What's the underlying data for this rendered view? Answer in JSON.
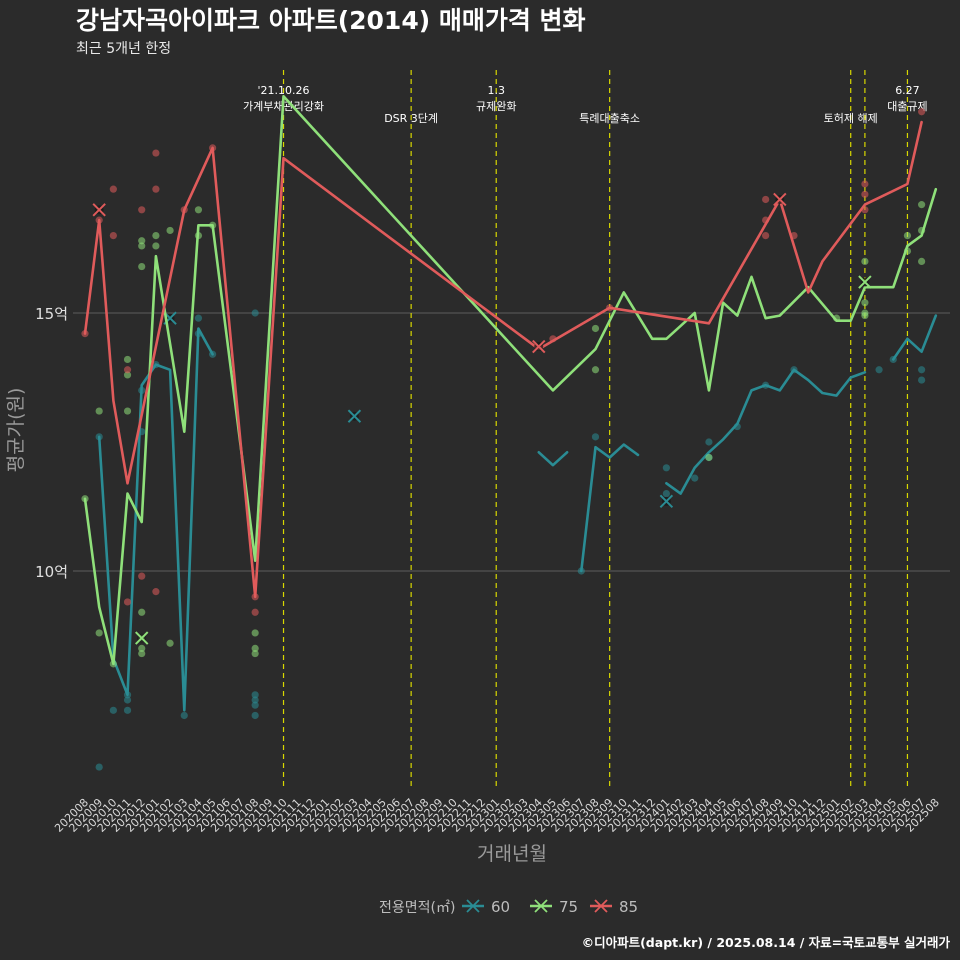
{
  "header": {
    "title": "강남자곡아이파크 아파트(2014) 매매가격 변화",
    "subtitle": "최근 5개년 한정"
  },
  "caption": "©디아파트(dapt.kr) / 2025.08.14 / 자료=국토교통부 실거래가",
  "legend": {
    "title": "전용면적(㎡)"
  },
  "chart_data": {
    "type": "line",
    "title": "강남자곡아이파크 아파트(2014) 매매가격 변화",
    "subtitle": "최근 5개년 한정",
    "xlabel": "거래년월",
    "ylabel": "평균가(원)",
    "ylim": [
      5.8,
      20.8
    ],
    "grid": "horizontal-major",
    "legend_position": "bottom",
    "y_ticks": [
      {
        "value": 10,
        "label": "10억"
      },
      {
        "value": 15,
        "label": "15억"
      }
    ],
    "x": [
      "202008",
      "202009",
      "202010",
      "202011",
      "202012",
      "202101",
      "202102",
      "202103",
      "202104",
      "202105",
      "202106",
      "202107",
      "202108",
      "202109",
      "202110",
      "202111",
      "202112",
      "202201",
      "202202",
      "202203",
      "202204",
      "202205",
      "202206",
      "202207",
      "202208",
      "202209",
      "202210",
      "202211",
      "202212",
      "202301",
      "202302",
      "202303",
      "202304",
      "202305",
      "202306",
      "202307",
      "202308",
      "202309",
      "202310",
      "202311",
      "202312",
      "202401",
      "202402",
      "202403",
      "202404",
      "202405",
      "202406",
      "202407",
      "202408",
      "202409",
      "202410",
      "202411",
      "202412",
      "202501",
      "202502",
      "202503",
      "202504",
      "202505",
      "202506",
      "202507",
      "202508"
    ],
    "series": [
      {
        "name": "60",
        "color": "#2a8c94",
        "lines": [
          [
            [
              "202009",
              12.6
            ],
            [
              "202010",
              8.3
            ],
            [
              "202011",
              7.6
            ],
            [
              "202012",
              13.6
            ],
            [
              "202101",
              14.0
            ],
            [
              "202102",
              13.9
            ],
            [
              "202103",
              7.3
            ],
            [
              "202104",
              14.7
            ],
            [
              "202105",
              14.2
            ]
          ],
          [
            [
              "202304",
              12.3
            ],
            [
              "202305",
              12.05
            ],
            [
              "202306",
              12.3
            ]
          ],
          [
            [
              "202307",
              10.0
            ],
            [
              "202308",
              12.4
            ],
            [
              "202309",
              12.2
            ],
            [
              "202310",
              12.45
            ],
            [
              "202311",
              12.25
            ]
          ],
          [
            [
              "202401",
              11.7
            ],
            [
              "202402",
              11.5
            ],
            [
              "202403",
              12.0
            ],
            [
              "202404",
              12.3
            ],
            [
              "202405",
              12.55
            ],
            [
              "202406",
              12.85
            ],
            [
              "202407",
              13.5
            ],
            [
              "202408",
              13.6
            ],
            [
              "202409",
              13.5
            ],
            [
              "202410",
              13.9
            ],
            [
              "202411",
              13.7
            ],
            [
              "202412",
              13.45
            ],
            [
              "202501",
              13.4
            ],
            [
              "202502",
              13.75
            ],
            [
              "202503",
              13.85
            ]
          ],
          [
            [
              "202505",
              14.1
            ],
            [
              "202506",
              14.5
            ],
            [
              "202507",
              14.25
            ],
            [
              "202508",
              14.95
            ]
          ]
        ],
        "points": [
          [
            "202009",
            12.6
          ],
          [
            "202009",
            6.2
          ],
          [
            "202010",
            7.3
          ],
          [
            "202011",
            7.5
          ],
          [
            "202011",
            7.3
          ],
          [
            "202011",
            7.6
          ],
          [
            "202012",
            12.7
          ],
          [
            "202012",
            13.5
          ],
          [
            "202101",
            14.0
          ],
          [
            "202103",
            7.2
          ],
          [
            "202104",
            14.6
          ],
          [
            "202104",
            14.9
          ],
          [
            "202105",
            14.2
          ],
          [
            "202108",
            15.0
          ],
          [
            "202108",
            7.6
          ],
          [
            "202108",
            7.5
          ],
          [
            "202108",
            7.4
          ],
          [
            "202108",
            7.2
          ],
          [
            "202307",
            10.0
          ],
          [
            "202308",
            12.6
          ],
          [
            "202401",
            11.5
          ],
          [
            "202401",
            12.0
          ],
          [
            "202403",
            11.8
          ],
          [
            "202404",
            12.5
          ],
          [
            "202404",
            12.2
          ],
          [
            "202406",
            12.8
          ],
          [
            "202408",
            13.6
          ],
          [
            "202410",
            13.9
          ],
          [
            "202504",
            13.9
          ],
          [
            "202505",
            14.1
          ],
          [
            "202507",
            13.9
          ],
          [
            "202507",
            13.7
          ]
        ],
        "max_markers": [
          [
            "202102",
            14.9
          ],
          [
            "202203",
            13.0
          ],
          [
            "202401",
            11.35
          ]
        ]
      },
      {
        "name": "75",
        "color": "#8fe07a",
        "lines": [
          [
            [
              "202008",
              11.4
            ],
            [
              "202009",
              9.3
            ],
            [
              "202010",
              8.2
            ],
            [
              "202011",
              11.5
            ],
            [
              "202012",
              10.95
            ],
            [
              "202101",
              16.1
            ],
            [
              "202103",
              12.7
            ],
            [
              "202104",
              16.7
            ],
            [
              "202105",
              16.7
            ],
            [
              "202108",
              10.2
            ],
            [
              "202110",
              19.2
            ],
            [
              "202305",
              13.5
            ],
            [
              "202308",
              14.3
            ],
            [
              "202310",
              15.4
            ],
            [
              "202312",
              14.5
            ],
            [
              "202401",
              14.5
            ],
            [
              "202402",
              14.75
            ],
            [
              "202403",
              15.0
            ],
            [
              "202404",
              13.5
            ],
            [
              "202405",
              15.2
            ],
            [
              "202406",
              14.95
            ],
            [
              "202407",
              15.7
            ],
            [
              "202408",
              14.9
            ],
            [
              "202409",
              14.95
            ],
            [
              "202411",
              15.5
            ],
            [
              "202501",
              14.85
            ],
            [
              "202502",
              14.85
            ],
            [
              "202503",
              15.5
            ],
            [
              "202505",
              15.5
            ],
            [
              "202506",
              16.3
            ],
            [
              "202507",
              16.5
            ],
            [
              "202508",
              17.4
            ]
          ]
        ],
        "points": [
          [
            "202008",
            11.4
          ],
          [
            "202009",
            13.1
          ],
          [
            "202009",
            8.8
          ],
          [
            "202010",
            8.2
          ],
          [
            "202011",
            14.1
          ],
          [
            "202011",
            13.8
          ],
          [
            "202011",
            13.1
          ],
          [
            "202012",
            16.4
          ],
          [
            "202012",
            16.3
          ],
          [
            "202012",
            15.9
          ],
          [
            "202012",
            9.2
          ],
          [
            "202012",
            8.7
          ],
          [
            "202012",
            8.5
          ],
          [
            "202012",
            8.4
          ],
          [
            "202101",
            16.5
          ],
          [
            "202101",
            16.3
          ],
          [
            "202102",
            16.6
          ],
          [
            "202102",
            8.6
          ],
          [
            "202104",
            17.0
          ],
          [
            "202104",
            16.5
          ],
          [
            "202105",
            16.7
          ],
          [
            "202108",
            8.8
          ],
          [
            "202108",
            8.5
          ],
          [
            "202108",
            8.4
          ],
          [
            "202308",
            14.7
          ],
          [
            "202308",
            13.9
          ],
          [
            "202404",
            12.2
          ],
          [
            "202501",
            14.9
          ],
          [
            "202503",
            16.0
          ],
          [
            "202503",
            15.2
          ],
          [
            "202503",
            14.95
          ],
          [
            "202503",
            15.0
          ],
          [
            "202506",
            16.2
          ],
          [
            "202506",
            16.5
          ],
          [
            "202507",
            17.1
          ],
          [
            "202507",
            16.6
          ],
          [
            "202507",
            16.0
          ]
        ],
        "max_markers": [
          [
            "202012",
            8.7
          ],
          [
            "202503",
            15.6
          ]
        ]
      },
      {
        "name": "85",
        "color": "#e05b5b",
        "lines": [
          [
            [
              "202008",
              14.6
            ],
            [
              "202009",
              16.8
            ],
            [
              "202010",
              13.3
            ],
            [
              "202011",
              11.7
            ],
            [
              "202103",
              17.0
            ],
            [
              "202105",
              18.2
            ],
            [
              "202108",
              9.5
            ],
            [
              "202110",
              18.0
            ],
            [
              "202304",
              14.3
            ],
            [
              "202309",
              15.1
            ],
            [
              "202404",
              14.8
            ],
            [
              "202409",
              17.2
            ],
            [
              "202411",
              15.4
            ],
            [
              "202412",
              16.0
            ],
            [
              "202503",
              17.1
            ],
            [
              "202506",
              17.5
            ],
            [
              "202507",
              18.7
            ]
          ]
        ],
        "points": [
          [
            "202008",
            14.6
          ],
          [
            "202009",
            16.8
          ],
          [
            "202010",
            17.4
          ],
          [
            "202010",
            16.5
          ],
          [
            "202011",
            13.9
          ],
          [
            "202011",
            9.4
          ],
          [
            "202012",
            17.0
          ],
          [
            "202012",
            9.9
          ],
          [
            "202101",
            18.1
          ],
          [
            "202101",
            17.4
          ],
          [
            "202101",
            9.6
          ],
          [
            "202103",
            17.0
          ],
          [
            "202105",
            18.2
          ],
          [
            "202108",
            9.5
          ],
          [
            "202108",
            9.2
          ],
          [
            "202305",
            14.5
          ],
          [
            "202309",
            15.1
          ],
          [
            "202408",
            16.5
          ],
          [
            "202408",
            16.8
          ],
          [
            "202408",
            17.2
          ],
          [
            "202410",
            16.5
          ],
          [
            "202503",
            17.3
          ],
          [
            "202503",
            17.5
          ],
          [
            "202503",
            17.0
          ],
          [
            "202507",
            18.9
          ]
        ],
        "max_markers": [
          [
            "202009",
            17.0
          ],
          [
            "202304",
            14.35
          ],
          [
            "202409",
            17.2
          ]
        ]
      }
    ],
    "events": [
      {
        "x": "202110",
        "label_lines": [
          "'21.10.26",
          "가계부채관리강화"
        ]
      },
      {
        "x": "202207",
        "label_lines": [
          "DSR 3단계"
        ]
      },
      {
        "x": "202301",
        "label_lines": [
          "1.3",
          "규제완화"
        ]
      },
      {
        "x": "202309",
        "label_lines": [
          "특례대출축소"
        ]
      },
      {
        "x": "202502",
        "label_lines": [
          "토허제 해제"
        ]
      },
      {
        "x": "202503",
        "label_lines": []
      },
      {
        "x": "202506",
        "label_lines": [
          "6.27",
          "대출규제"
        ]
      }
    ]
  }
}
